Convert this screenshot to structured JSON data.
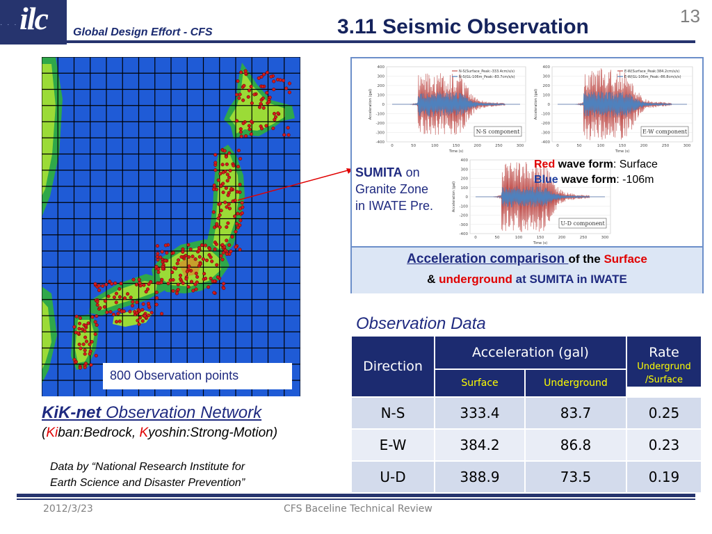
{
  "header": {
    "logo_text": "ilc",
    "logo_dots": "· · · · · ·",
    "subtitle": "Global Design Effort - CFS",
    "title": "3.11 Seismic Observation",
    "slide_number": "13"
  },
  "map": {
    "label": "800 Observation points"
  },
  "kiknet": {
    "title_bold": "KiK-net",
    "title_rest": " Observation Network",
    "sub_open": "(",
    "sub_ki": "Ki",
    "sub_mid": "ban:Bedrock, ",
    "sub_k": "K",
    "sub_end": "yoshin:Strong-Motion)",
    "credit_line1": "Data by “National Research Institute for",
    "credit_line2": "Earth Science and Disaster Prevention”"
  },
  "panel": {
    "sumita_name": "SUMITA",
    "sumita_on": " on",
    "sumita_line2": "Granite Zone",
    "sumita_line3": "in IWATE Pre.",
    "legend_red": "Red",
    "legend_wave1": " wave form",
    "legend_surface": ": Surface",
    "legend_blue": "Blue",
    "legend_wave2": " wave form",
    "legend_depth": ":  -106m",
    "caption_a": "Acceleration comparison ",
    "caption_b": "of  the ",
    "caption_c": "Surface",
    "caption_d": "&  ",
    "caption_e": "underground",
    "caption_f": " at SUMITA in IWATE",
    "plots": [
      {
        "component": "N-S component",
        "legend1": "N-S(Surface_Peak:-333.4cm/s/s)",
        "legend2": "N-S(GL-106m_Peak:-83.7cm/s/s)"
      },
      {
        "component": "E-W component",
        "legend1": "E-W(Surface_Peak:384.2cm/s/s)",
        "legend2": "E-W(GL-106m_Peak:-86.8cm/s/s)"
      },
      {
        "component": "U-D component",
        "legend1": "",
        "legend2": ""
      }
    ],
    "axis_ylabel": "Acceleration (gal)",
    "axis_xlabel": "Time (s)",
    "y_ticks": [
      "400",
      "300",
      "200",
      "100",
      "0",
      "-100",
      "-200",
      "-300",
      "-400"
    ],
    "x_ticks": [
      "0",
      "50",
      "100",
      "150",
      "200",
      "250",
      "300"
    ]
  },
  "observation": {
    "title": "Observation Data",
    "col_direction": "Direction",
    "col_accel": "Acceleration (gal)",
    "col_rate": "Rate",
    "col_surface": "Surface",
    "col_underground": "Underground",
    "col_rate_sub1": "Undergrund",
    "col_rate_sub2": "/Surface",
    "rows": [
      {
        "direction": "N-S",
        "surface": "333.4",
        "underground": "83.7",
        "rate": "0.25"
      },
      {
        "direction": "E-W",
        "surface": "384.2",
        "underground": "86.8",
        "rate": "0.23"
      },
      {
        "direction": "U-D",
        "surface": "388.9",
        "underground": "73.5",
        "rate": "0.19"
      }
    ]
  },
  "footer": {
    "date": "2012/3/23",
    "center": "CFS Baceline Technical Review"
  },
  "colors": {
    "navy": "#26346e",
    "surface_wave": "#c0504d",
    "underground_wave": "#4f81bd",
    "accent_red": "#e00000"
  }
}
